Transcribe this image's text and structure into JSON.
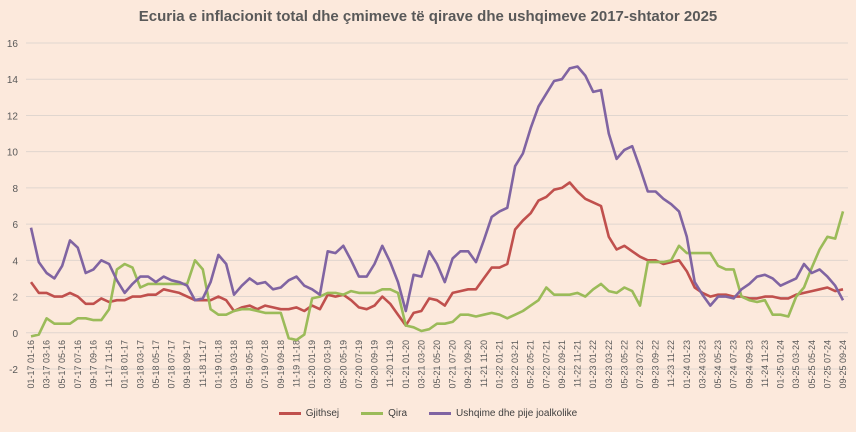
{
  "chart_data": {
    "type": "line",
    "title": "Ecuria e inflacionit total dhe çmimeve të qirave dhe ushqimeve 2017-shtator 2025",
    "xlabel": "",
    "ylabel": "",
    "ylim": [
      -2,
      16
    ],
    "yticks": [
      -2,
      0,
      2,
      4,
      6,
      8,
      10,
      12,
      14,
      16
    ],
    "grid": true,
    "legend_position": "bottom",
    "x_tick_labels": [
      "01-17 01-16",
      "03-17 03-16",
      "05-17 05-16",
      "07-17 07-16",
      "09-17 09-16",
      "11-17 11-16",
      "01-18 01-17",
      "03-18 03-17",
      "05-18 05-17",
      "07-18 07-17",
      "09-18 09-17",
      "11-18 11-17",
      "01-19 01-18",
      "03-19 03-18",
      "05-19 05-18",
      "07-19 07-18",
      "09-19 09-18",
      "11-19 11-18",
      "01-20 01-19",
      "03-20 03-19",
      "05-20 05-19",
      "07-20 07-19",
      "09-20 09-19",
      "11-20 11-19",
      "01-21 01-20",
      "03-21 03-20",
      "05-21 05-20",
      "07-21 07-20",
      "09-21 09-20",
      "11-21 11-20",
      "01-22 01-21",
      "03-22 03-21",
      "05-22 05-21",
      "07-22 07-21",
      "09-22 09-21",
      "11-22 11-21",
      "01-23 01-22",
      "03-23 03-22",
      "05-23 05-22",
      "07-23 07-22",
      "09-23 09-22",
      "11-23 11-22",
      "01-24 01-23",
      "03-24 03-23",
      "05-24 05-23",
      "07-24 07-23",
      "09-24 09-23",
      "11-24 11-23",
      "01-25 01-24",
      "03-25 03-24",
      "05-25 05-24",
      "07-25 07-24",
      "09-25 09-24"
    ],
    "series": [
      {
        "name": "Gjithsej",
        "color": "#c0504d",
        "values": [
          2.8,
          2.2,
          2.2,
          2.0,
          2.0,
          2.2,
          2.0,
          1.6,
          1.6,
          1.9,
          1.7,
          1.8,
          1.8,
          2.0,
          2.0,
          2.1,
          2.1,
          2.4,
          2.3,
          2.2,
          2.0,
          1.8,
          1.8,
          1.8,
          2.0,
          1.8,
          1.2,
          1.4,
          1.5,
          1.3,
          1.5,
          1.4,
          1.3,
          1.3,
          1.4,
          1.2,
          1.5,
          1.3,
          2.1,
          2.0,
          2.1,
          1.8,
          1.4,
          1.3,
          1.5,
          2.0,
          1.6,
          1.0,
          0.4,
          1.1,
          1.2,
          1.9,
          1.8,
          1.5,
          2.2,
          2.3,
          2.4,
          2.4,
          3.0,
          3.6,
          3.6,
          3.8,
          5.7,
          6.2,
          6.6,
          7.3,
          7.5,
          7.9,
          8.0,
          8.3,
          7.8,
          7.4,
          7.2,
          7.0,
          5.3,
          4.6,
          4.8,
          4.5,
          4.2,
          4.0,
          4.0,
          3.8,
          3.9,
          4.0,
          3.4,
          2.5,
          2.2,
          2.0,
          2.1,
          2.1,
          2.0,
          2.0,
          1.9,
          1.9,
          2.0,
          2.0,
          1.9,
          1.9,
          2.1,
          2.2,
          2.3,
          2.4,
          2.5,
          2.3,
          2.4
        ]
      },
      {
        "name": "Qira",
        "color": "#9bbb59",
        "values": [
          -0.2,
          -0.1,
          0.8,
          0.5,
          0.5,
          0.5,
          0.8,
          0.8,
          0.7,
          0.7,
          1.3,
          3.5,
          3.8,
          3.6,
          2.5,
          2.7,
          2.7,
          2.7,
          2.7,
          2.7,
          2.7,
          4.0,
          3.5,
          1.3,
          1.0,
          1.0,
          1.2,
          1.3,
          1.3,
          1.2,
          1.1,
          1.1,
          1.1,
          -0.3,
          -0.4,
          -0.1,
          1.9,
          2.0,
          2.2,
          2.2,
          2.1,
          2.3,
          2.2,
          2.2,
          2.2,
          2.4,
          2.4,
          2.2,
          0.4,
          0.3,
          0.1,
          0.2,
          0.5,
          0.5,
          0.6,
          1.0,
          1.0,
          0.9,
          1.0,
          1.1,
          1.0,
          0.8,
          1.0,
          1.2,
          1.5,
          1.8,
          2.5,
          2.1,
          2.1,
          2.1,
          2.2,
          2.0,
          2.4,
          2.7,
          2.3,
          2.2,
          2.5,
          2.3,
          1.5,
          3.9,
          3.9,
          3.9,
          4.0,
          4.8,
          4.4,
          4.4,
          4.4,
          4.4,
          3.7,
          3.5,
          3.5,
          2.0,
          1.8,
          1.7,
          1.8,
          1.0,
          1.0,
          0.9,
          2.0,
          2.5,
          3.6,
          4.6,
          5.3,
          5.2,
          6.7
        ]
      },
      {
        "name": "Ushqime dhe pije joalkolike",
        "color": "#8064a2",
        "values": [
          5.8,
          3.9,
          3.3,
          3.0,
          3.7,
          5.1,
          4.7,
          3.3,
          3.5,
          4.0,
          3.8,
          2.9,
          2.2,
          2.7,
          3.1,
          3.1,
          2.8,
          3.1,
          2.9,
          2.8,
          2.6,
          1.8,
          1.9,
          2.8,
          4.3,
          3.8,
          2.1,
          2.6,
          3.0,
          2.7,
          2.8,
          2.4,
          2.5,
          2.9,
          3.1,
          2.6,
          2.4,
          2.1,
          4.5,
          4.4,
          4.8,
          4.0,
          3.1,
          3.1,
          3.8,
          4.8,
          3.9,
          2.8,
          1.2,
          3.2,
          3.1,
          4.5,
          3.8,
          2.8,
          4.1,
          4.5,
          4.5,
          3.9,
          5.1,
          6.4,
          6.7,
          6.9,
          9.2,
          9.9,
          11.3,
          12.5,
          13.2,
          13.9,
          14.0,
          14.6,
          14.7,
          14.2,
          13.3,
          13.4,
          11.0,
          9.6,
          10.1,
          10.3,
          9.1,
          7.8,
          7.8,
          7.4,
          7.1,
          6.7,
          5.3,
          2.8,
          2.1,
          1.5,
          2.0,
          2.0,
          1.9,
          2.4,
          2.7,
          3.1,
          3.2,
          3.0,
          2.6,
          2.8,
          3.0,
          3.8,
          3.3,
          3.5,
          3.1,
          2.6,
          1.8
        ]
      }
    ]
  }
}
